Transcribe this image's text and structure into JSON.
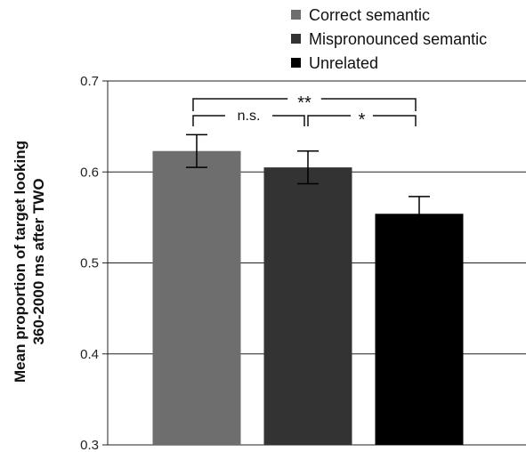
{
  "chart_data": {
    "type": "bar",
    "title": "",
    "xlabel": "",
    "ylabel_lines": [
      "Mean proportion of target looking",
      "360-2000 ms after TWO"
    ],
    "ylim": [
      0.3,
      0.7
    ],
    "yticks": [
      "0.3",
      "0.4",
      "0.5",
      "0.6",
      "0.7"
    ],
    "grid": "horizontal",
    "legend_position": "top-right",
    "series": [
      {
        "name": "Correct semantic",
        "value": 0.623,
        "error": 0.018,
        "color": "#6e6e6e"
      },
      {
        "name": "Mispronounced semantic",
        "value": 0.605,
        "error": 0.018,
        "color": "#333333"
      },
      {
        "name": "Unrelated",
        "value": 0.554,
        "error": 0.019,
        "color": "#000000"
      }
    ],
    "comparisons": [
      {
        "from": 0,
        "to": 2,
        "label": "**"
      },
      {
        "from": 0,
        "to": 1,
        "label": "n.s."
      },
      {
        "from": 1,
        "to": 2,
        "label": "*"
      }
    ]
  }
}
